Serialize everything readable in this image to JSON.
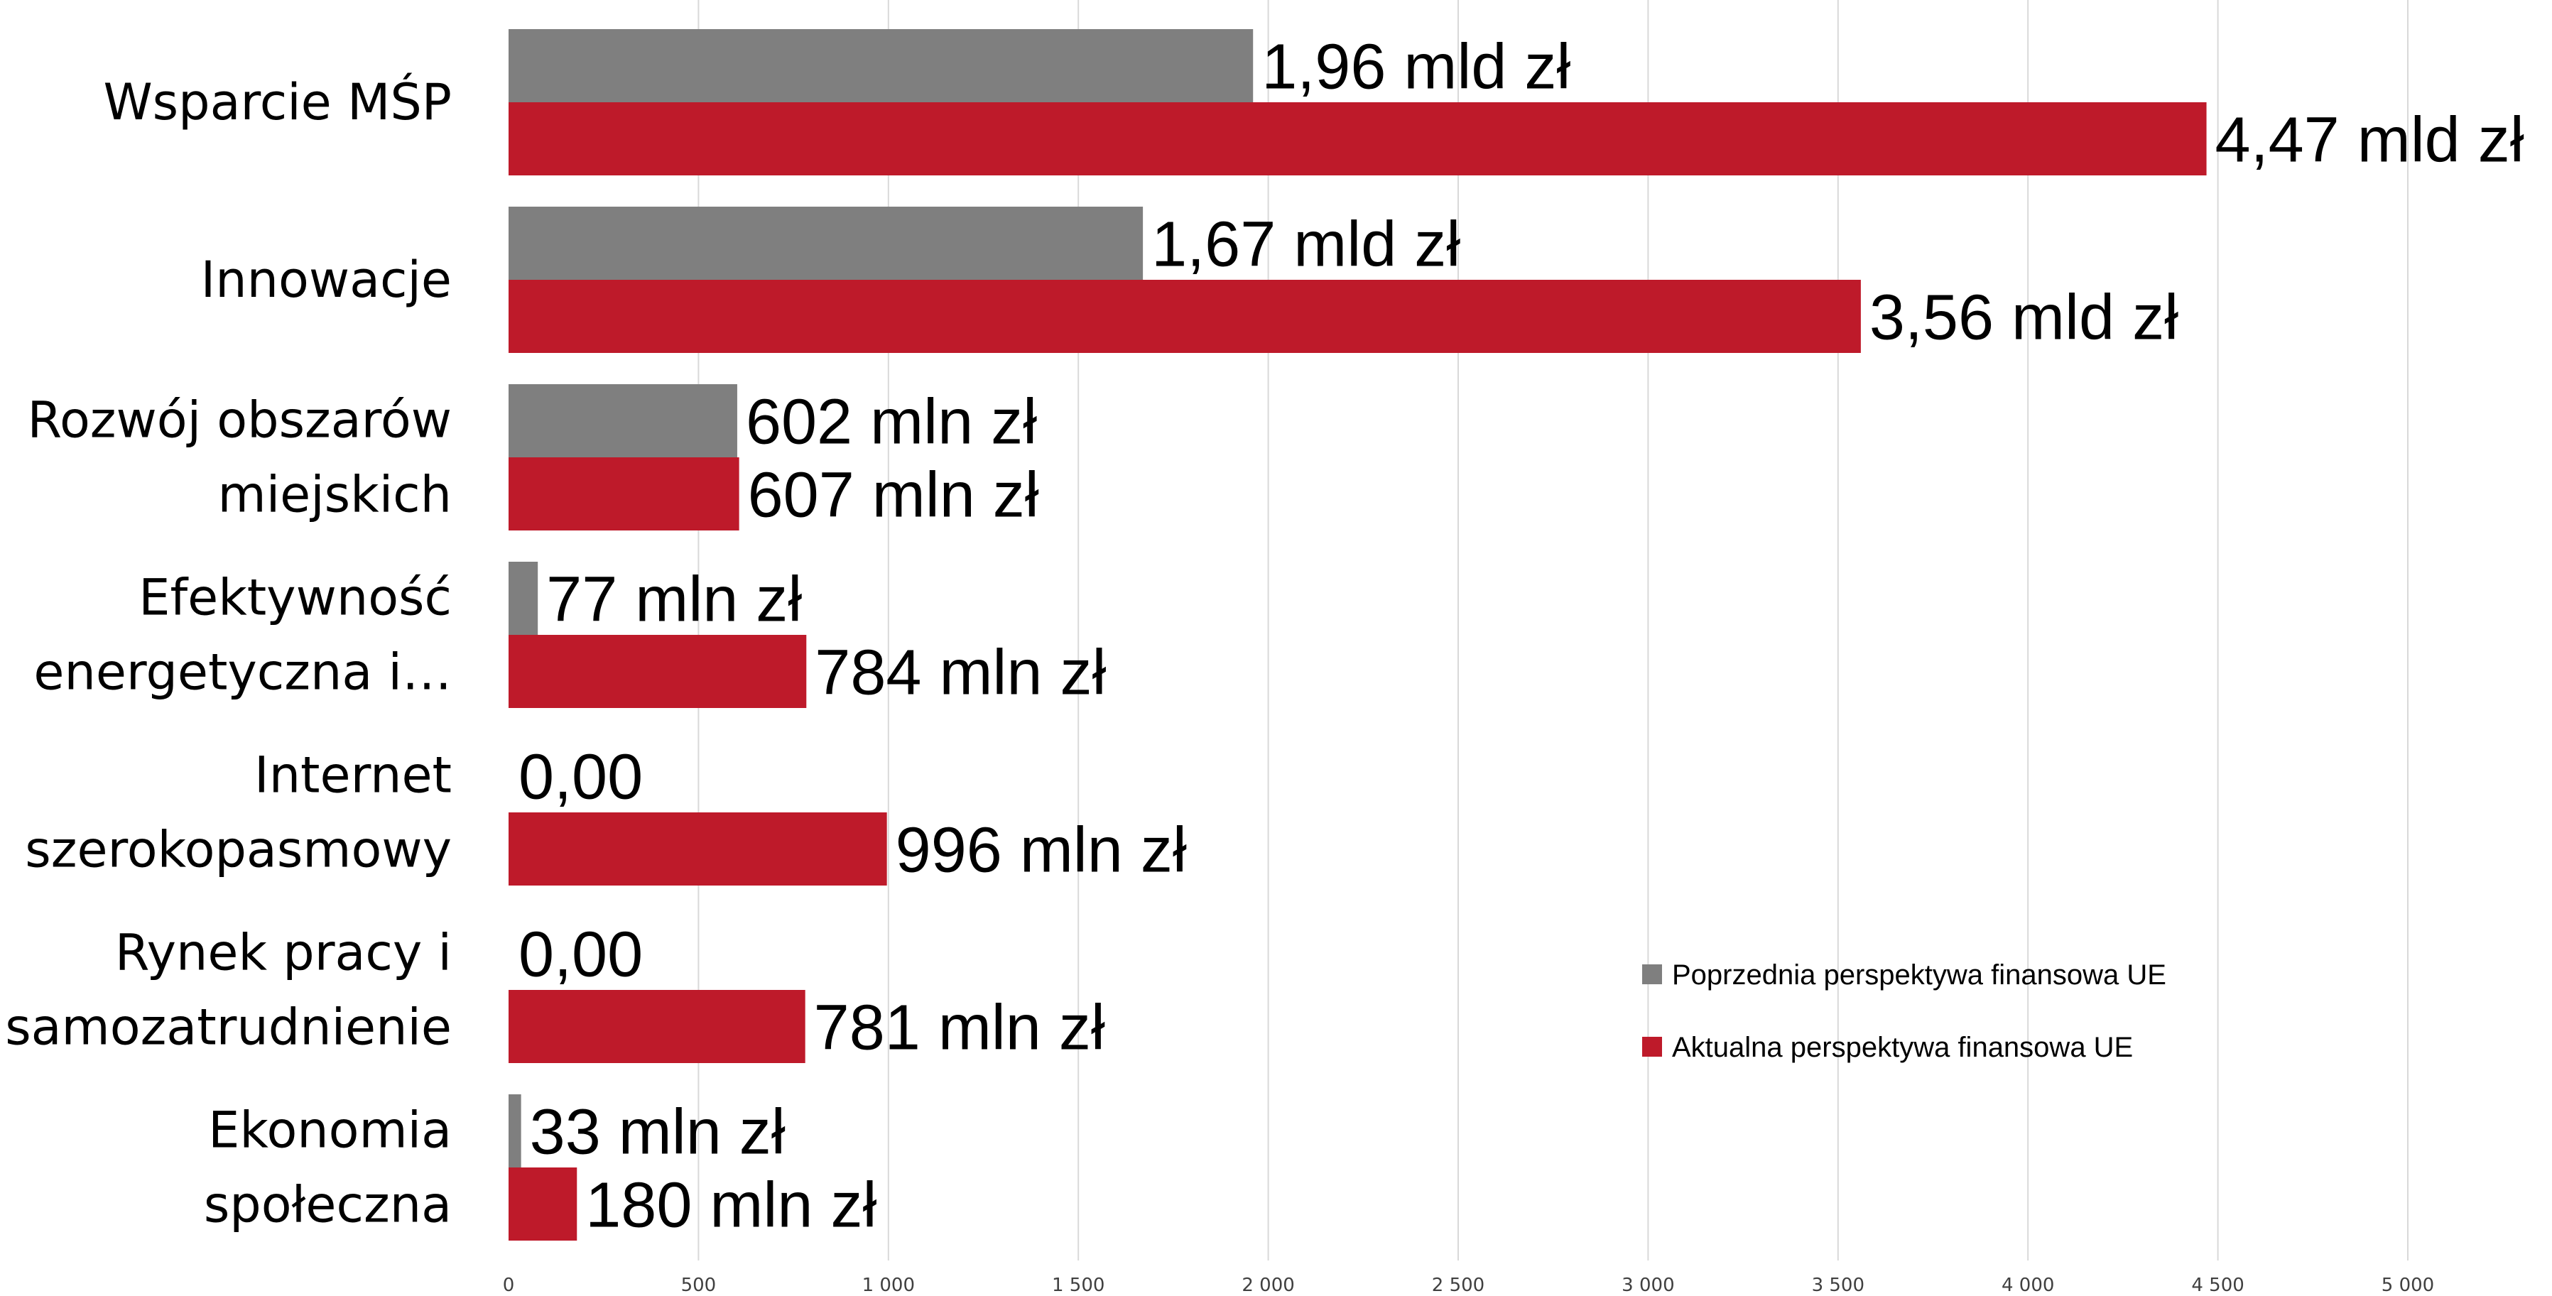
{
  "chart_data": {
    "type": "bar",
    "orientation": "horizontal",
    "title": "",
    "xlabel": "",
    "ylabel": "",
    "xlim": [
      0,
      5000
    ],
    "x_ticks": [
      0,
      500,
      1000,
      1500,
      2000,
      2500,
      3000,
      3500,
      4000,
      4500,
      5000
    ],
    "x_tick_labels": [
      "0",
      "500",
      "1 000",
      "1 500",
      "2 000",
      "2 500",
      "3 000",
      "3 500",
      "4 000",
      "4 500",
      "5 000"
    ],
    "grid": true,
    "legend_position": "right-middle",
    "categories": [
      [
        "Wsparcie MŚP"
      ],
      [
        "Innowacje"
      ],
      [
        "Rozwój obszarów",
        "miejskich"
      ],
      [
        "Efektywność",
        "energetyczna i…"
      ],
      [
        "Internet",
        "szerokopasmowy"
      ],
      [
        "Rynek pracy i",
        "samozatrudnienie"
      ],
      [
        "Ekonomia",
        "społeczna"
      ]
    ],
    "series": [
      {
        "name": "Poprzednia perspektywa finansowa UE",
        "color": "#7f7f7f",
        "values": [
          1960,
          1670,
          602,
          77,
          0,
          0,
          33
        ],
        "labels": [
          "1,96 mld zł",
          "1,67 mld zł",
          "602 mln zł",
          "77 mln zł",
          "0,00",
          "0,00",
          "33 mln zł"
        ]
      },
      {
        "name": "Aktualna perspektywa finansowa UE",
        "color": "#be1a2a",
        "values": [
          4470,
          3560,
          607,
          784,
          996,
          781,
          180
        ],
        "labels": [
          "4,47 mld zł",
          "3,56 mld zł",
          "607 mln zł",
          "784 mln zł",
          "996 mln zł",
          "781 mln zł",
          "180 mln zł"
        ]
      }
    ]
  }
}
